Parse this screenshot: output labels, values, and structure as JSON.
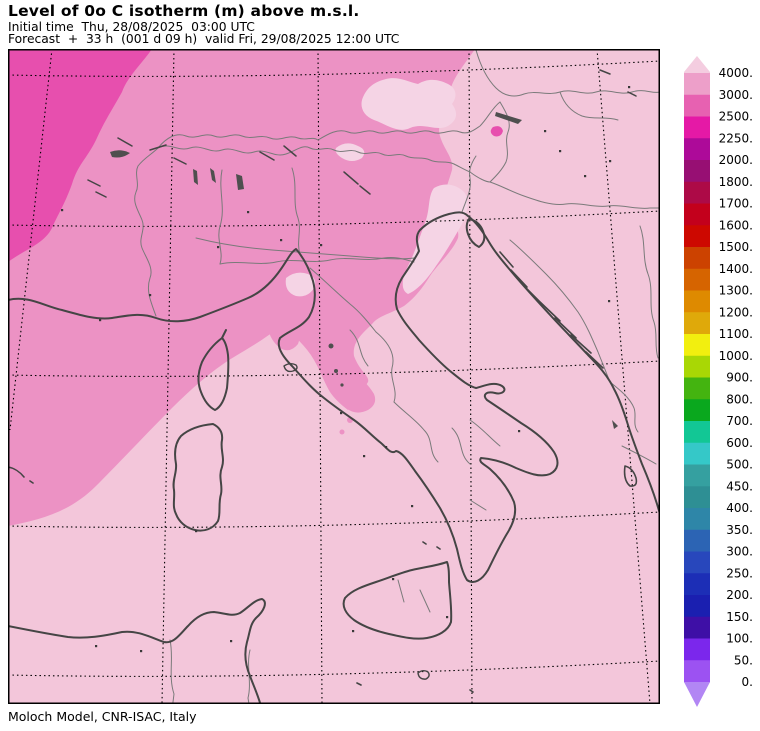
{
  "header": {
    "title": "Level of 0o C isotherm (m) above m.s.l.",
    "line2": "Initial time  Thu, 28/08/2025  03:00 UTC",
    "line3": "Forecast  +  33 h  (001 d 09 h)  valid Fri, 29/08/2025 12:00 UTC"
  },
  "footer": {
    "credit": "Moloch Model, CNR-ISAC, Italy"
  },
  "colorbar": {
    "boundary_labels": [
      "4000.",
      "3000.",
      "2500.",
      "2250.",
      "2000.",
      "1800.",
      "1700.",
      "1600.",
      "1500.",
      "1400.",
      "1300.",
      "1200.",
      "1100.",
      "1000.",
      "900.",
      "800.",
      "700.",
      "600.",
      "500.",
      "450.",
      "400.",
      "350.",
      "300.",
      "250.",
      "200.",
      "150.",
      "100.",
      "50.",
      "0."
    ],
    "segment_colors": [
      "#ED9FC9",
      "#E761B1",
      "#E519A6",
      "#AD0A99",
      "#970F73",
      "#AD0A47",
      "#C3001C",
      "#CD0800",
      "#CC4200",
      "#D66400",
      "#DE8A00",
      "#DFA90A",
      "#F2EF0F",
      "#A9D705",
      "#44B410",
      "#0AA81E",
      "#12C795",
      "#35C8C8",
      "#35A0A0",
      "#2E8F94",
      "#2E86A8",
      "#2C64B4",
      "#2847BC",
      "#1C2EB6",
      "#1A1FB0",
      "#3E0FA6",
      "#7B27EC",
      "#9C52F2"
    ],
    "arrow_top_color": "#F4CDE0",
    "arrow_bottom_color": "#B286F4",
    "label_color": "#000000"
  },
  "map": {
    "bands": {
      "above_4000": "#F3C6DA",
      "high_patch": "#F5D4E5",
      "band_3000_4000": "#EC92C4",
      "band_2500_3000": "#E74FAE"
    },
    "lines": {
      "coast": "#454545",
      "border": "#7A7A7A",
      "graticule": "#000000",
      "lake": "#4F4F4F",
      "dot": "#383838",
      "frame": "#000000"
    }
  }
}
